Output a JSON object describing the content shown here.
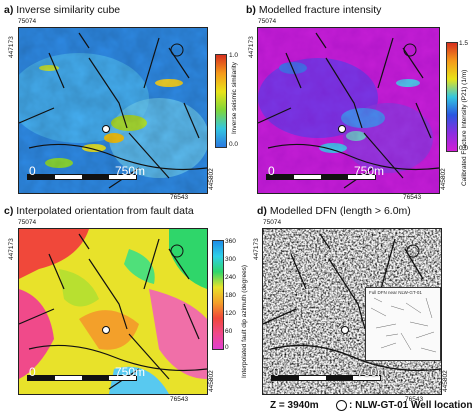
{
  "panels": [
    {
      "letter": "a)",
      "title": "Inverse similarity cube",
      "colorbar": {
        "max": "1.0",
        "min": "0.0",
        "label": "Inverse seismic similarity"
      },
      "coords": {
        "top": "75074",
        "left": "447173",
        "right": "445802",
        "bottom": "76543"
      },
      "scale": {
        "zero": "0",
        "end": "750m"
      }
    },
    {
      "letter": "b)",
      "title": "Modelled fracture intensity",
      "colorbar": {
        "max": "1.5",
        "min": "0.0",
        "label": "Calibrated Fracture Intensity (P21) (1/m)"
      },
      "coords": {
        "top": "75074",
        "left": "447173",
        "right": "445802",
        "bottom": "76543"
      },
      "scale": {
        "zero": "0",
        "end": "750m"
      }
    },
    {
      "letter": "c)",
      "title": "Interpolated orientation from fault data",
      "colorbar": {
        "ticks": [
          "360",
          "300",
          "240",
          "180",
          "120",
          "60",
          "0"
        ],
        "label": "Interpolated fault dip azimuth (degrees)"
      },
      "coords": {
        "top": "75074",
        "left": "447173",
        "right": "445802",
        "bottom": "76543"
      },
      "scale": {
        "zero": "0",
        "end": "750m"
      }
    },
    {
      "letter": "d)",
      "title": "Modelled DFN (length > 6.0m)",
      "inset_label": "Full DFN near NLW-GT-01",
      "coords": {
        "top": "75074",
        "left": "447173",
        "right": "445802",
        "bottom": "76543"
      },
      "scale": {
        "zero": "0",
        "end": "750m"
      }
    }
  ],
  "footer": {
    "depth": "Z = 3940m",
    "well": ": NLW-GT-01 Well location"
  }
}
